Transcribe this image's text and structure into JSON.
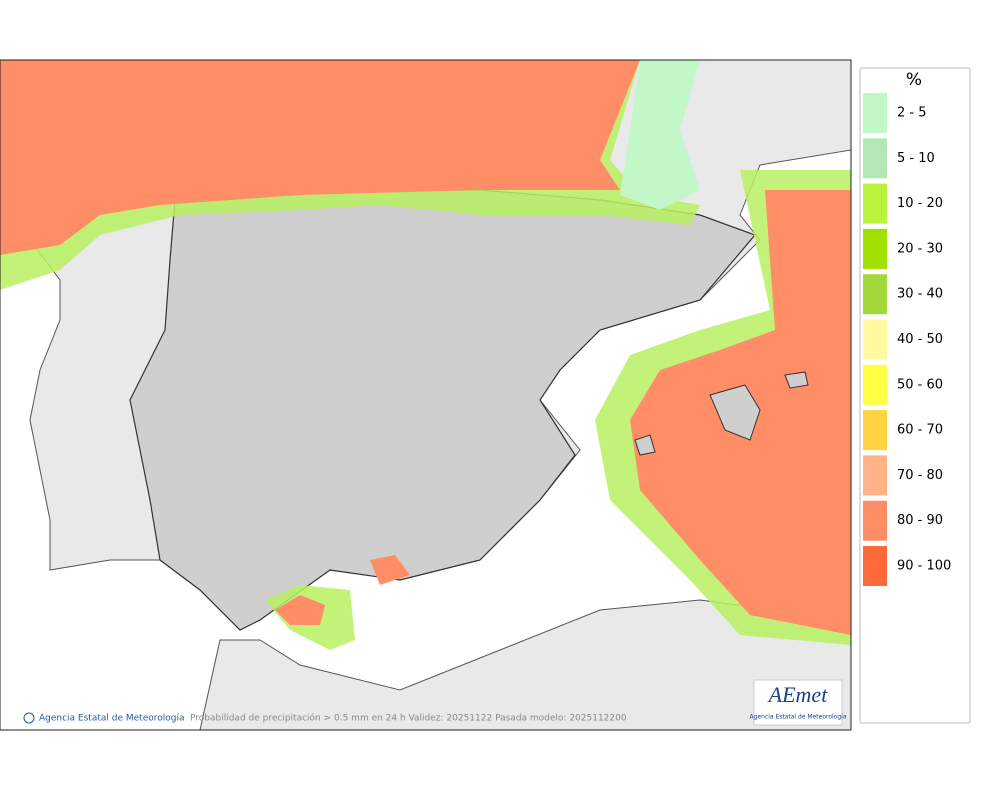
{
  "legend": {
    "title": "%",
    "items": [
      {
        "label": "2 - 5",
        "color": "#c2f7c8"
      },
      {
        "label": "5 - 10",
        "color": "#b3e8b6"
      },
      {
        "label": "10 - 20",
        "color": "#baf23c"
      },
      {
        "label": "20 - 30",
        "color": "#a2e000"
      },
      {
        "label": "30 - 40",
        "color": "#a3d83a"
      },
      {
        "label": "40 - 50",
        "color": "#fffaa0"
      },
      {
        "label": "50 - 60",
        "color": "#ffff44"
      },
      {
        "label": "60 - 70",
        "color": "#ffd342"
      },
      {
        "label": "70 - 80",
        "color": "#ffb386"
      },
      {
        "label": "80 - 90",
        "color": "#ff8d66"
      },
      {
        "label": "90 - 100",
        "color": "#ff6a3a"
      }
    ]
  },
  "footer": {
    "credit": "Agencia Estatal de Meteorología",
    "caption": "Probabilidad de precipitación > 0.5 mm en 24 h Validez: 20251122 Pasada modelo: 2025112200"
  },
  "logo": {
    "text": "AEmet",
    "subtitle": "Agencia Estatal de Meteorología"
  }
}
